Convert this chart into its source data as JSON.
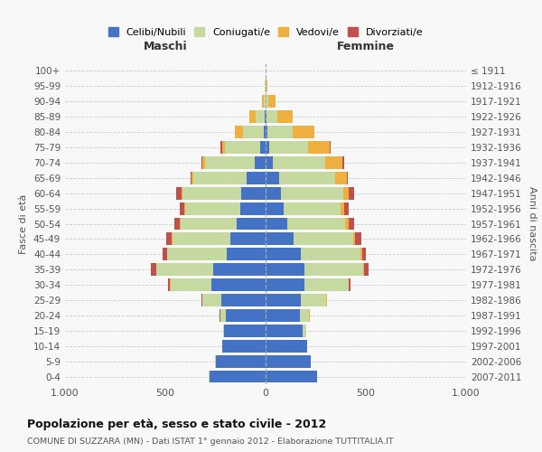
{
  "age_groups": [
    "0-4",
    "5-9",
    "10-14",
    "15-19",
    "20-24",
    "25-29",
    "30-34",
    "35-39",
    "40-44",
    "45-49",
    "50-54",
    "55-59",
    "60-64",
    "65-69",
    "70-74",
    "75-79",
    "80-84",
    "85-89",
    "90-94",
    "95-99",
    "100+"
  ],
  "birth_years": [
    "2007-2011",
    "2002-2006",
    "1997-2001",
    "1992-1996",
    "1987-1991",
    "1982-1986",
    "1977-1981",
    "1972-1976",
    "1967-1971",
    "1962-1966",
    "1957-1961",
    "1952-1956",
    "1947-1951",
    "1942-1946",
    "1937-1941",
    "1932-1936",
    "1927-1931",
    "1922-1926",
    "1917-1921",
    "1912-1916",
    "≤ 1911"
  ],
  "males": {
    "celibi": [
      280,
      250,
      215,
      205,
      200,
      220,
      270,
      260,
      195,
      175,
      145,
      125,
      120,
      95,
      55,
      28,
      8,
      5,
      2,
      1,
      0
    ],
    "coniugati": [
      2,
      2,
      2,
      5,
      25,
      95,
      205,
      285,
      295,
      290,
      280,
      275,
      295,
      265,
      245,
      175,
      105,
      45,
      8,
      3,
      0
    ],
    "vedovi": [
      0,
      0,
      0,
      0,
      2,
      2,
      2,
      2,
      2,
      2,
      3,
      5,
      5,
      10,
      15,
      15,
      40,
      30,
      10,
      2,
      0
    ],
    "divorziati": [
      0,
      0,
      0,
      0,
      2,
      2,
      10,
      25,
      20,
      30,
      25,
      25,
      25,
      5,
      5,
      5,
      2,
      0,
      0,
      0,
      0
    ]
  },
  "females": {
    "nubili": [
      255,
      225,
      205,
      185,
      170,
      175,
      195,
      195,
      175,
      140,
      110,
      88,
      78,
      68,
      38,
      18,
      8,
      4,
      2,
      1,
      0
    ],
    "coniugate": [
      2,
      2,
      3,
      18,
      48,
      128,
      218,
      292,
      300,
      298,
      288,
      285,
      308,
      278,
      258,
      195,
      125,
      55,
      10,
      2,
      0
    ],
    "vedove": [
      0,
      0,
      0,
      0,
      2,
      2,
      2,
      2,
      5,
      10,
      15,
      18,
      28,
      58,
      88,
      108,
      108,
      78,
      38,
      5,
      0
    ],
    "divorziate": [
      0,
      0,
      0,
      0,
      2,
      2,
      10,
      25,
      20,
      28,
      28,
      22,
      28,
      5,
      8,
      5,
      2,
      0,
      0,
      0,
      0
    ]
  },
  "color_celibi": "#4472c4",
  "color_coniugati": "#c5d9a0",
  "color_vedovi": "#f0b040",
  "color_divorziati": "#c0504d",
  "xlim": 1000,
  "title": "Popolazione per età, sesso e stato civile - 2012",
  "subtitle": "COMUNE DI SUZZARA (MN) - Dati ISTAT 1° gennaio 2012 - Elaborazione TUTTITALIA.IT",
  "xlabel_left": "Maschi",
  "xlabel_right": "Femmine",
  "ylabel_left": "Fasce di età",
  "ylabel_right": "Anni di nascita",
  "bg_color": "#f8f8f8",
  "grid_color": "#cccccc"
}
